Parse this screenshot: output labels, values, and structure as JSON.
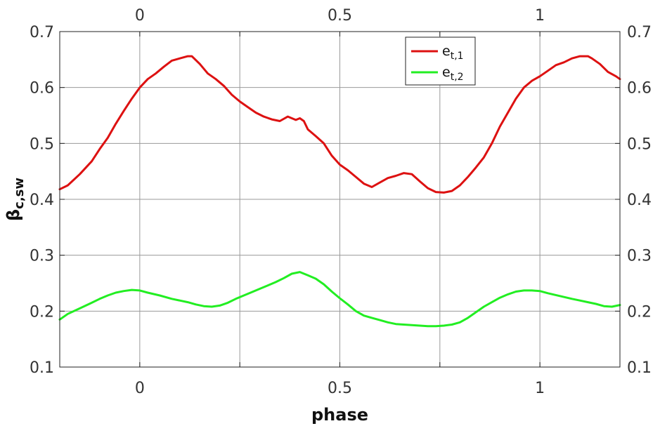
{
  "chart_data": {
    "type": "line",
    "xlabel": "phase",
    "ylabel_main": "β",
    "ylabel_sub": "c,sw",
    "xlim": [
      -0.2,
      1.2
    ],
    "ylim": [
      0.1,
      0.7
    ],
    "xticks": [
      0,
      0.5,
      1
    ],
    "xtick_labels": [
      "0",
      "0.5",
      "1"
    ],
    "xticks_minor": [
      0.25,
      0.75
    ],
    "yticks": [
      0.1,
      0.2,
      0.3,
      0.4,
      0.5,
      0.6,
      0.7
    ],
    "ytick_labels": [
      "0.1",
      "0.2",
      "0.3",
      "0.4",
      "0.5",
      "0.6",
      "0.7"
    ],
    "grid": true,
    "legend_position": "top-right",
    "series": [
      {
        "name_main": "e",
        "name_sub": "t,1",
        "color": "#dd1111",
        "x": [
          -0.2,
          -0.18,
          -0.15,
          -0.12,
          -0.1,
          -0.08,
          -0.06,
          -0.04,
          -0.02,
          0,
          0.02,
          0.04,
          0.06,
          0.08,
          0.1,
          0.12,
          0.13,
          0.15,
          0.17,
          0.19,
          0.21,
          0.23,
          0.25,
          0.27,
          0.29,
          0.31,
          0.33,
          0.35,
          0.37,
          0.38,
          0.39,
          0.4,
          0.41,
          0.42,
          0.44,
          0.46,
          0.48,
          0.5,
          0.52,
          0.54,
          0.56,
          0.58,
          0.6,
          0.62,
          0.64,
          0.66,
          0.68,
          0.7,
          0.72,
          0.74,
          0.76,
          0.78,
          0.8,
          0.82,
          0.84,
          0.86,
          0.88,
          0.9,
          0.92,
          0.94,
          0.96,
          0.98,
          1.0,
          1.02,
          1.04,
          1.06,
          1.08,
          1.1,
          1.12,
          1.13,
          1.15,
          1.17,
          1.19,
          1.2
        ],
        "y": [
          0.418,
          0.425,
          0.445,
          0.468,
          0.49,
          0.51,
          0.535,
          0.558,
          0.58,
          0.6,
          0.615,
          0.625,
          0.637,
          0.648,
          0.652,
          0.656,
          0.656,
          0.642,
          0.625,
          0.615,
          0.603,
          0.587,
          0.575,
          0.565,
          0.555,
          0.548,
          0.543,
          0.54,
          0.548,
          0.545,
          0.542,
          0.545,
          0.54,
          0.525,
          0.513,
          0.5,
          0.478,
          0.462,
          0.452,
          0.44,
          0.428,
          0.422,
          0.43,
          0.438,
          0.442,
          0.447,
          0.445,
          0.432,
          0.42,
          0.413,
          0.412,
          0.415,
          0.425,
          0.44,
          0.457,
          0.475,
          0.5,
          0.53,
          0.555,
          0.58,
          0.6,
          0.612,
          0.62,
          0.63,
          0.64,
          0.645,
          0.652,
          0.656,
          0.656,
          0.652,
          0.642,
          0.628,
          0.62,
          0.615
        ]
      },
      {
        "name_main": "e",
        "name_sub": "t,2",
        "color": "#22ee22",
        "x": [
          -0.2,
          -0.18,
          -0.15,
          -0.12,
          -0.1,
          -0.08,
          -0.06,
          -0.04,
          -0.02,
          0,
          0.02,
          0.05,
          0.08,
          0.1,
          0.12,
          0.14,
          0.16,
          0.18,
          0.2,
          0.22,
          0.24,
          0.26,
          0.28,
          0.3,
          0.32,
          0.34,
          0.36,
          0.38,
          0.4,
          0.42,
          0.44,
          0.46,
          0.48,
          0.5,
          0.52,
          0.54,
          0.56,
          0.58,
          0.6,
          0.62,
          0.64,
          0.66,
          0.68,
          0.7,
          0.72,
          0.74,
          0.76,
          0.78,
          0.8,
          0.82,
          0.84,
          0.86,
          0.88,
          0.9,
          0.92,
          0.94,
          0.96,
          0.98,
          1.0,
          1.02,
          1.05,
          1.08,
          1.1,
          1.12,
          1.14,
          1.16,
          1.18,
          1.2
        ],
        "y": [
          0.185,
          0.195,
          0.205,
          0.215,
          0.222,
          0.228,
          0.233,
          0.236,
          0.238,
          0.237,
          0.233,
          0.228,
          0.222,
          0.219,
          0.216,
          0.212,
          0.209,
          0.208,
          0.21,
          0.215,
          0.222,
          0.228,
          0.234,
          0.24,
          0.246,
          0.252,
          0.259,
          0.267,
          0.27,
          0.264,
          0.258,
          0.248,
          0.235,
          0.223,
          0.212,
          0.2,
          0.192,
          0.188,
          0.184,
          0.18,
          0.177,
          0.176,
          0.175,
          0.174,
          0.173,
          0.173,
          0.174,
          0.176,
          0.18,
          0.188,
          0.198,
          0.208,
          0.216,
          0.224,
          0.23,
          0.235,
          0.237,
          0.237,
          0.236,
          0.232,
          0.227,
          0.222,
          0.219,
          0.216,
          0.213,
          0.209,
          0.208,
          0.211
        ]
      }
    ]
  }
}
